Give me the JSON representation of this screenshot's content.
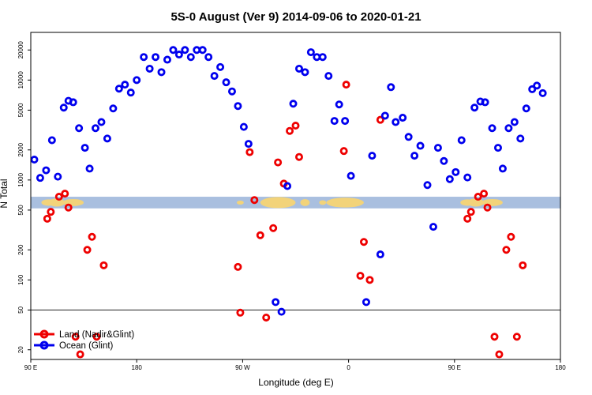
{
  "chart_data": {
    "type": "scatter",
    "title": "5S-0 August (Ver 9)   2014-09-06 to 2020-01-21",
    "xlabel": "Longitude (deg E)",
    "ylabel": "N Total",
    "x_axis": {
      "min": 90,
      "max": 540,
      "scale": "linear"
    },
    "y_axis": {
      "min": 16,
      "max": 30000,
      "scale": "log"
    },
    "x_ticks": [
      {
        "value": 90,
        "label": "90 E"
      },
      {
        "value": 180,
        "label": "180"
      },
      {
        "value": 270,
        "label": "90 W"
      },
      {
        "value": 360,
        "label": "0"
      },
      {
        "value": 450,
        "label": "90 E"
      },
      {
        "value": 540,
        "label": "180"
      }
    ],
    "y_ticks": [
      20,
      50,
      100,
      200,
      500,
      1000,
      2000,
      5000,
      10000,
      20000
    ],
    "reference_line": 50,
    "map_strip": {
      "y_low": 520,
      "y_high": 680
    },
    "legend": {
      "position": "bottom-left"
    },
    "series": [
      {
        "name": "Land (Nadir&Glint)",
        "color": "#ee0000",
        "points": [
          [
            104,
            410
          ],
          [
            107,
            480
          ],
          [
            114,
            680
          ],
          [
            119,
            730
          ],
          [
            122,
            530
          ],
          [
            128,
            27
          ],
          [
            132,
            18
          ],
          [
            138,
            200
          ],
          [
            142,
            270
          ],
          [
            146,
            27
          ],
          [
            152,
            140
          ],
          [
            266,
            135
          ],
          [
            268,
            47
          ],
          [
            276,
            1900
          ],
          [
            280,
            630
          ],
          [
            285,
            280
          ],
          [
            290,
            42
          ],
          [
            296,
            330
          ],
          [
            300,
            1500
          ],
          [
            305,
            920
          ],
          [
            310,
            3100
          ],
          [
            315,
            3500
          ],
          [
            318,
            1700
          ],
          [
            356,
            1950
          ],
          [
            358,
            9000
          ],
          [
            370,
            110
          ],
          [
            373,
            240
          ],
          [
            378,
            100
          ],
          [
            387,
            4000
          ],
          [
            461,
            410
          ],
          [
            464,
            480
          ],
          [
            470,
            680
          ],
          [
            475,
            730
          ],
          [
            478,
            530
          ],
          [
            484,
            27
          ],
          [
            488,
            18
          ],
          [
            494,
            200
          ],
          [
            498,
            270
          ],
          [
            503,
            27
          ],
          [
            508,
            140
          ]
        ]
      },
      {
        "name": "Ocean (Glint)",
        "color": "#0000ee",
        "points": [
          [
            93,
            1600
          ],
          [
            98,
            1050
          ],
          [
            103,
            1250
          ],
          [
            108,
            2500
          ],
          [
            113,
            1080
          ],
          [
            118,
            5300
          ],
          [
            122,
            6200
          ],
          [
            126,
            6000
          ],
          [
            131,
            3300
          ],
          [
            136,
            2100
          ],
          [
            140,
            1300
          ],
          [
            145,
            3300
          ],
          [
            150,
            3800
          ],
          [
            155,
            2600
          ],
          [
            160,
            5200
          ],
          [
            165,
            8200
          ],
          [
            170,
            9000
          ],
          [
            175,
            7500
          ],
          [
            180,
            10000
          ],
          [
            186,
            17000
          ],
          [
            191,
            13000
          ],
          [
            196,
            17000
          ],
          [
            201,
            12000
          ],
          [
            206,
            16000
          ],
          [
            211,
            20000
          ],
          [
            216,
            18000
          ],
          [
            221,
            20000
          ],
          [
            226,
            17000
          ],
          [
            231,
            20000
          ],
          [
            236,
            20000
          ],
          [
            241,
            17000
          ],
          [
            246,
            11000
          ],
          [
            251,
            13500
          ],
          [
            256,
            9500
          ],
          [
            261,
            7700
          ],
          [
            266,
            5500
          ],
          [
            271,
            3400
          ],
          [
            275,
            2300
          ],
          [
            298,
            60
          ],
          [
            303,
            48
          ],
          [
            308,
            870
          ],
          [
            313,
            5800
          ],
          [
            318,
            13000
          ],
          [
            323,
            12000
          ],
          [
            328,
            19000
          ],
          [
            333,
            17000
          ],
          [
            338,
            17000
          ],
          [
            343,
            11000
          ],
          [
            348,
            3900
          ],
          [
            352,
            5700
          ],
          [
            357,
            3900
          ],
          [
            362,
            1100
          ],
          [
            375,
            60
          ],
          [
            380,
            1750
          ],
          [
            387,
            180
          ],
          [
            391,
            4400
          ],
          [
            396,
            8500
          ],
          [
            400,
            3800
          ],
          [
            406,
            4200
          ],
          [
            411,
            2700
          ],
          [
            416,
            1750
          ],
          [
            421,
            2200
          ],
          [
            427,
            890
          ],
          [
            432,
            340
          ],
          [
            436,
            2100
          ],
          [
            441,
            1550
          ],
          [
            446,
            1020
          ],
          [
            451,
            1200
          ],
          [
            456,
            2500
          ],
          [
            461,
            1060
          ],
          [
            467,
            5300
          ],
          [
            472,
            6100
          ],
          [
            476,
            6000
          ],
          [
            482,
            3300
          ],
          [
            487,
            2100
          ],
          [
            491,
            1300
          ],
          [
            496,
            3300
          ],
          [
            501,
            3800
          ],
          [
            506,
            2600
          ],
          [
            511,
            5200
          ],
          [
            516,
            8100
          ],
          [
            520,
            8800
          ],
          [
            525,
            7400
          ]
        ]
      }
    ]
  }
}
